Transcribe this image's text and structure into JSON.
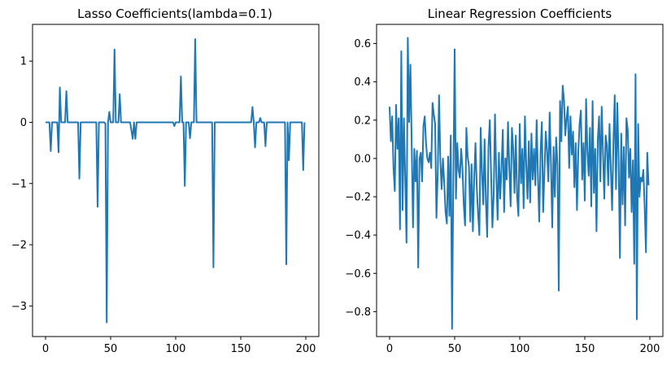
{
  "chart_data": [
    {
      "type": "line",
      "title": "Lasso Coefficients(lambda=0.1)",
      "xlabel": "",
      "ylabel": "",
      "xlim": [
        -10,
        210
      ],
      "ylim": [
        -3.5,
        1.6
      ],
      "xticks": [
        0,
        50,
        100,
        150,
        200
      ],
      "yticks": [
        1,
        0,
        -1,
        -2,
        -3
      ],
      "xtick_labels": [
        "0",
        "50",
        "100",
        "150",
        "200"
      ],
      "ytick_labels": [
        "1",
        "0",
        "−1",
        "−2",
        "−3"
      ],
      "grid": false,
      "series": [
        {
          "color": "#1f77b4",
          "points": [
            [
              0,
              0
            ],
            [
              3,
              0
            ],
            [
              4,
              -0.47
            ],
            [
              5,
              0
            ],
            [
              9,
              0
            ],
            [
              10,
              -0.49
            ],
            [
              11,
              0.57
            ],
            [
              12,
              0
            ],
            [
              15,
              0
            ],
            [
              16,
              0.51
            ],
            [
              17,
              0
            ],
            [
              25,
              0
            ],
            [
              26,
              -0.92
            ],
            [
              27,
              0
            ],
            [
              39,
              0
            ],
            [
              40,
              -1.38
            ],
            [
              41,
              0
            ],
            [
              45,
              0
            ],
            [
              46,
              -0.02
            ],
            [
              47,
              -3.27
            ],
            [
              48,
              0
            ],
            [
              49,
              0.17
            ],
            [
              50,
              0
            ],
            [
              52,
              0
            ],
            [
              53,
              1.19
            ],
            [
              54,
              0
            ],
            [
              56,
              0
            ],
            [
              57,
              0.46
            ],
            [
              58,
              0
            ],
            [
              65,
              0
            ],
            [
              67,
              -0.27
            ],
            [
              68,
              0
            ],
            [
              69,
              -0.27
            ],
            [
              70,
              0
            ],
            [
              98,
              0
            ],
            [
              99,
              -0.06
            ],
            [
              100,
              0
            ],
            [
              103,
              0
            ],
            [
              104,
              0.75
            ],
            [
              105,
              0
            ],
            [
              106,
              0
            ],
            [
              107,
              -1.04
            ],
            [
              108,
              0
            ],
            [
              110,
              0
            ],
            [
              111,
              -0.26
            ],
            [
              112,
              0
            ],
            [
              114,
              0
            ],
            [
              115,
              1.36
            ],
            [
              116,
              0
            ],
            [
              128,
              0
            ],
            [
              129,
              -2.37
            ],
            [
              130,
              0
            ],
            [
              158,
              0
            ],
            [
              159,
              0.25
            ],
            [
              160,
              0
            ],
            [
              161,
              -0.41
            ],
            [
              162,
              0
            ],
            [
              164,
              0
            ],
            [
              165,
              0.07
            ],
            [
              166,
              0
            ],
            [
              168,
              0
            ],
            [
              169,
              -0.39
            ],
            [
              170,
              0
            ],
            [
              184,
              0
            ],
            [
              185,
              -2.32
            ],
            [
              186,
              0
            ],
            [
              187,
              -0.62
            ],
            [
              188,
              0
            ],
            [
              197,
              0
            ],
            [
              198,
              -0.78
            ],
            [
              199,
              0
            ]
          ]
        }
      ]
    },
    {
      "type": "line",
      "title": "Linear Regression Coefficients",
      "xlabel": "",
      "ylabel": "",
      "xlim": [
        -10,
        210
      ],
      "ylim": [
        -0.93,
        0.7
      ],
      "xticks": [
        0,
        50,
        100,
        150,
        200
      ],
      "yticks": [
        0.6,
        0.4,
        0.2,
        0.0,
        -0.2,
        -0.4,
        -0.6,
        -0.8
      ],
      "xtick_labels": [
        "0",
        "50",
        "100",
        "150",
        "200"
      ],
      "ytick_labels": [
        "0.6",
        "0.4",
        "0.2",
        "0.0",
        "−0.2",
        "−0.4",
        "−0.6",
        "−0.8"
      ],
      "grid": false,
      "series": [
        {
          "color": "#1f77b4",
          "values": [
            0.27,
            0.09,
            0.22,
            -0.05,
            -0.17,
            0.28,
            0.05,
            0.21,
            -0.37,
            0.56,
            -0.27,
            0.21,
            -0.1,
            -0.44,
            0.63,
            0.19,
            0.49,
            0.07,
            -0.36,
            0.05,
            -0.12,
            0.04,
            -0.57,
            0.0,
            0.03,
            -0.12,
            0.17,
            0.22,
            0.08,
            0.0,
            -0.02,
            0.03,
            -0.05,
            0.29,
            0.23,
            0.18,
            -0.31,
            -0.08,
            0.33,
            -0.01,
            -0.16,
            0.0,
            -0.13,
            -0.28,
            -0.34,
            0.01,
            -0.3,
            0.12,
            -0.89,
            -0.1,
            0.57,
            -0.21,
            0.08,
            -0.06,
            -0.1,
            0.05,
            -0.05,
            -0.24,
            -0.35,
            0.16,
            0.01,
            -0.04,
            -0.33,
            -0.03,
            -0.38,
            -0.11,
            0.08,
            -0.15,
            -0.29,
            -0.4,
            0.16,
            -0.07,
            -0.24,
            0.1,
            -0.22,
            -0.41,
            0.06,
            0.2,
            -0.08,
            -0.36,
            -0.19,
            0.23,
            -0.09,
            -0.32,
            0.03,
            -0.21,
            -0.05,
            0.15,
            -0.28,
            0.0,
            -0.11,
            0.19,
            -0.05,
            -0.25,
            0.16,
            0.05,
            -0.18,
            0.12,
            -0.2,
            -0.3,
            0.18,
            -0.13,
            0.05,
            -0.26,
            0.22,
            -0.03,
            -0.21,
            0.09,
            -0.23,
            0.13,
            -0.11,
            0.05,
            -0.14,
            0.2,
            -0.09,
            -0.33,
            0.03,
            0.19,
            -0.28,
            -0.07,
            0.14,
            0.04,
            -0.12,
            0.24,
            -0.02,
            -0.36,
            0.06,
            -0.2,
            0.11,
            -0.03,
            -0.69,
            0.3,
            0.09,
            0.38,
            0.31,
            0.12,
            0.21,
            0.27,
            -0.05,
            0.22,
            0.02,
            0.14,
            -0.15,
            0.08,
            -0.27,
            0.03,
            0.18,
            0.25,
            -0.11,
            0.08,
            -0.22,
            0.31,
            0.04,
            -0.09,
            0.16,
            -0.25,
            0.3,
            -0.18,
            0.05,
            -0.38,
            0.1,
            0.22,
            -0.12,
            0.27,
            0.03,
            -0.21,
            0.12,
            0.07,
            -0.14,
            0.18,
            -0.05,
            -0.27,
            0.08,
            0.33,
            -0.16,
            0.29,
            -0.01,
            -0.52,
            0.13,
            -0.24,
            0.06,
            -0.35,
            0.21,
            0.15,
            -0.1,
            0.05,
            -0.28,
            -0.01,
            -0.55,
            0.44,
            -0.84,
            0.18,
            -0.2,
            -0.1,
            -0.12,
            -0.06,
            -0.25,
            -0.49,
            0.03,
            -0.14
          ]
        }
      ]
    }
  ]
}
